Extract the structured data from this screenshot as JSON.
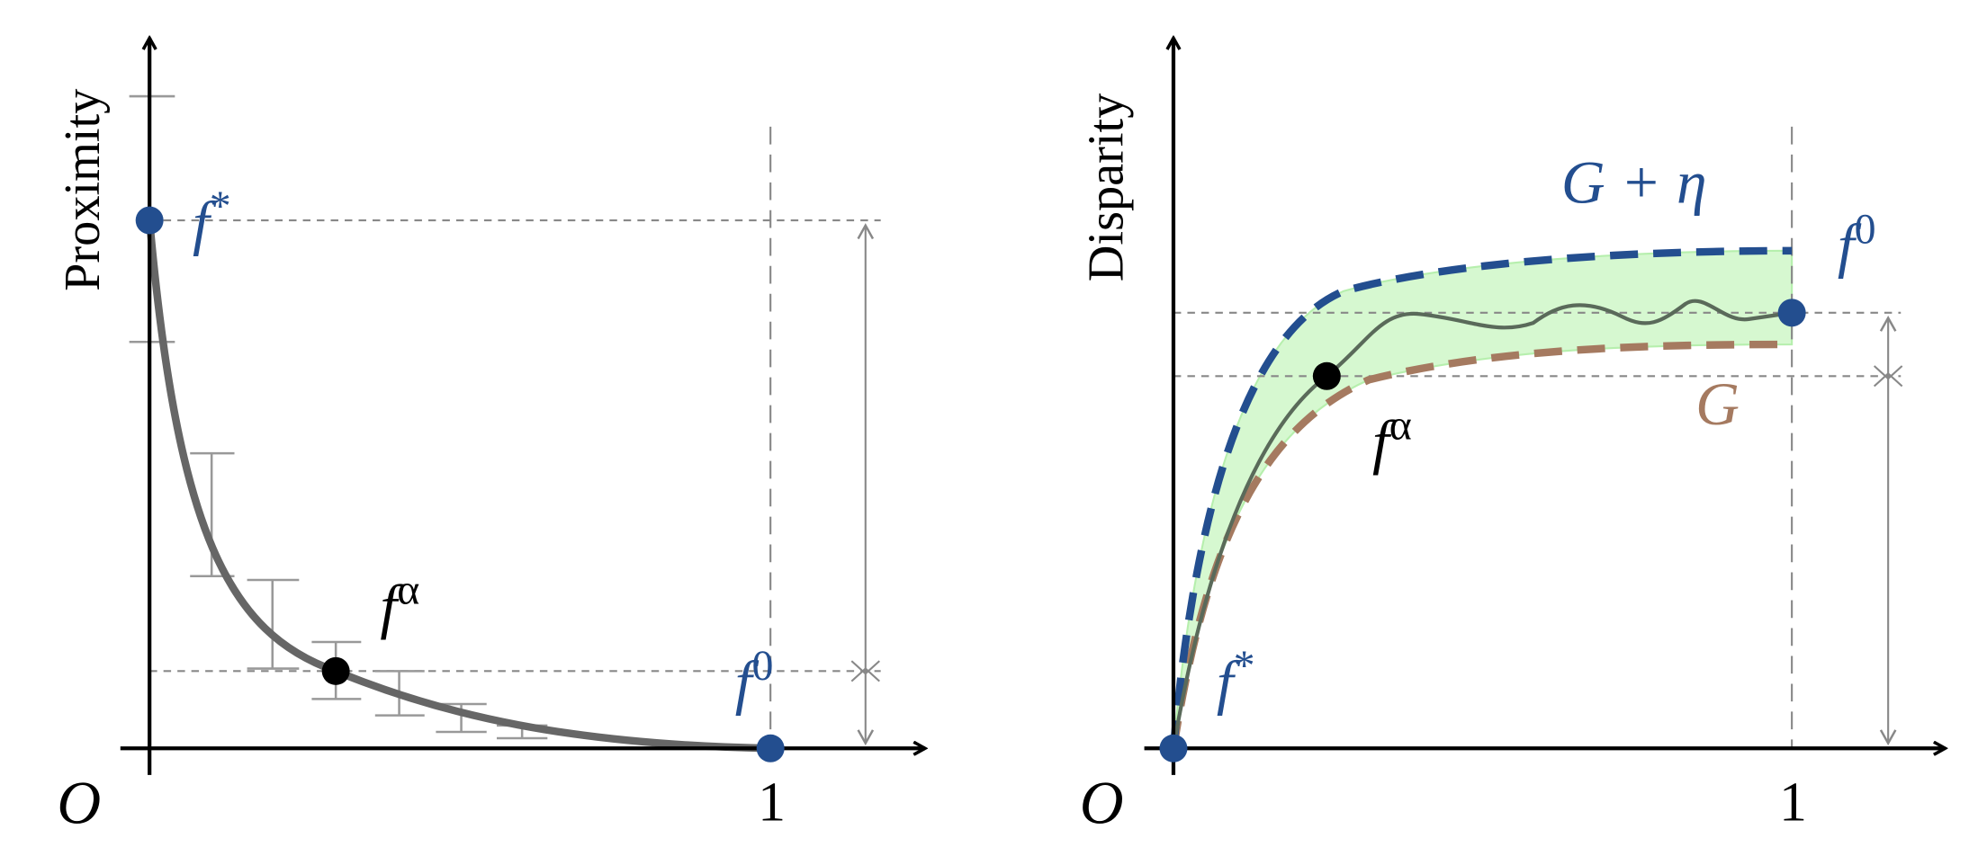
{
  "left": {
    "y_axis_label": "Proximity",
    "origin": "O",
    "x_tick": "1",
    "f_star": {
      "base": "f",
      "sup": "*"
    },
    "f_alpha": {
      "base": "f",
      "sup": "α"
    },
    "f_zero": {
      "base": "f",
      "sup": "0"
    }
  },
  "right": {
    "y_axis_label": "Disparity",
    "origin": "O",
    "x_tick": "1",
    "f_star": {
      "base": "f",
      "sup": "*"
    },
    "f_alpha": {
      "base": "f",
      "sup": "α"
    },
    "f_zero": {
      "base": "f",
      "sup": "0"
    },
    "upper_curve": "G + η",
    "lower_curve": "G"
  }
}
